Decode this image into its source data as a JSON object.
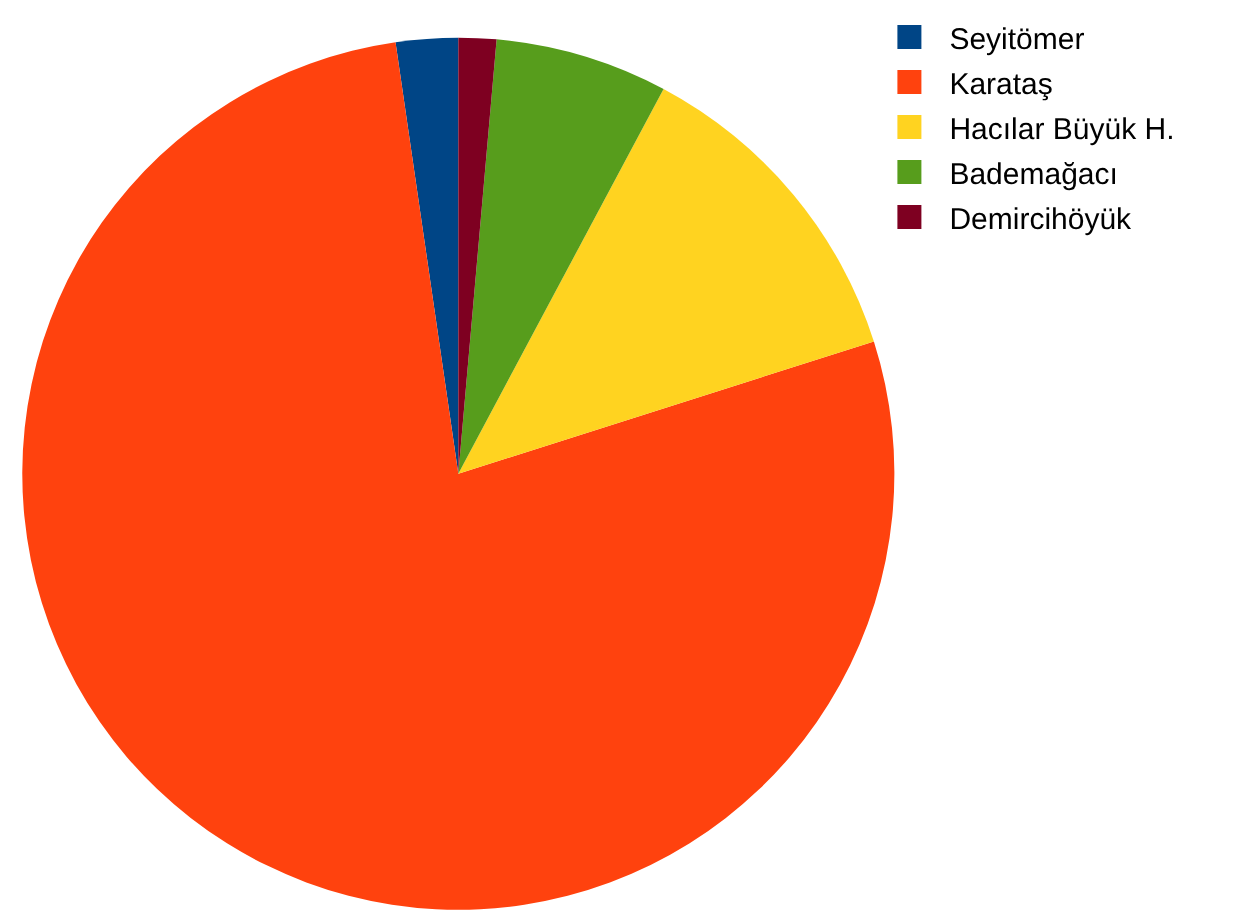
{
  "chart_data": {
    "type": "pie",
    "categories": [
      "Seyitömer",
      "Karataş",
      "Hacılar Büyük H.",
      "Bademağacı",
      "Demircihöyük"
    ],
    "values": [
      2.3,
      77.6,
      12.3,
      6.4,
      1.4
    ],
    "colors": [
      "#004586",
      "#ff420e",
      "#ffd320",
      "#579d1c",
      "#7e0021"
    ],
    "legend": "top right"
  }
}
